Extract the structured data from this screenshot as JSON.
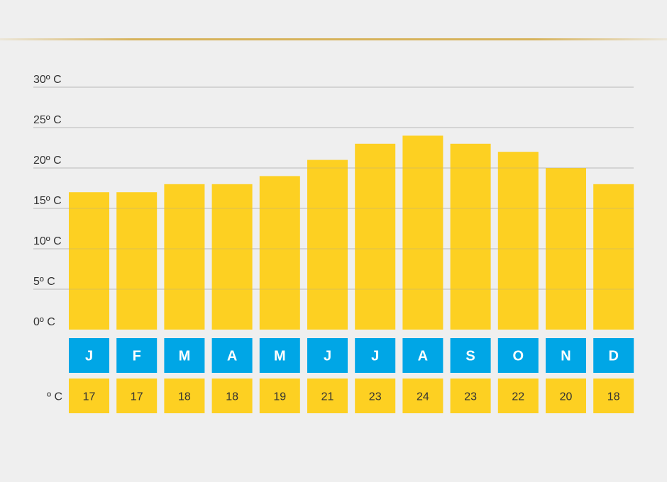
{
  "chart_data": {
    "type": "bar",
    "categories": [
      "J",
      "F",
      "M",
      "A",
      "M",
      "J",
      "J",
      "A",
      "S",
      "O",
      "N",
      "D"
    ],
    "values": [
      17,
      17,
      18,
      18,
      19,
      21,
      23,
      24,
      23,
      22,
      20,
      18
    ],
    "ytick_labels": [
      "0º C",
      "5º C",
      "10º C",
      "15º C",
      "20º C",
      "25º C",
      "30º C"
    ],
    "yticks": [
      0,
      5,
      10,
      15,
      20,
      25,
      30
    ],
    "ylim": [
      0,
      30
    ],
    "unit_label": "º C",
    "grid": true,
    "colors": {
      "bar": "#fdd022",
      "month_box": "#00a6e6",
      "value_box": "#fdd022",
      "gridline": "#c8c8c8"
    }
  }
}
